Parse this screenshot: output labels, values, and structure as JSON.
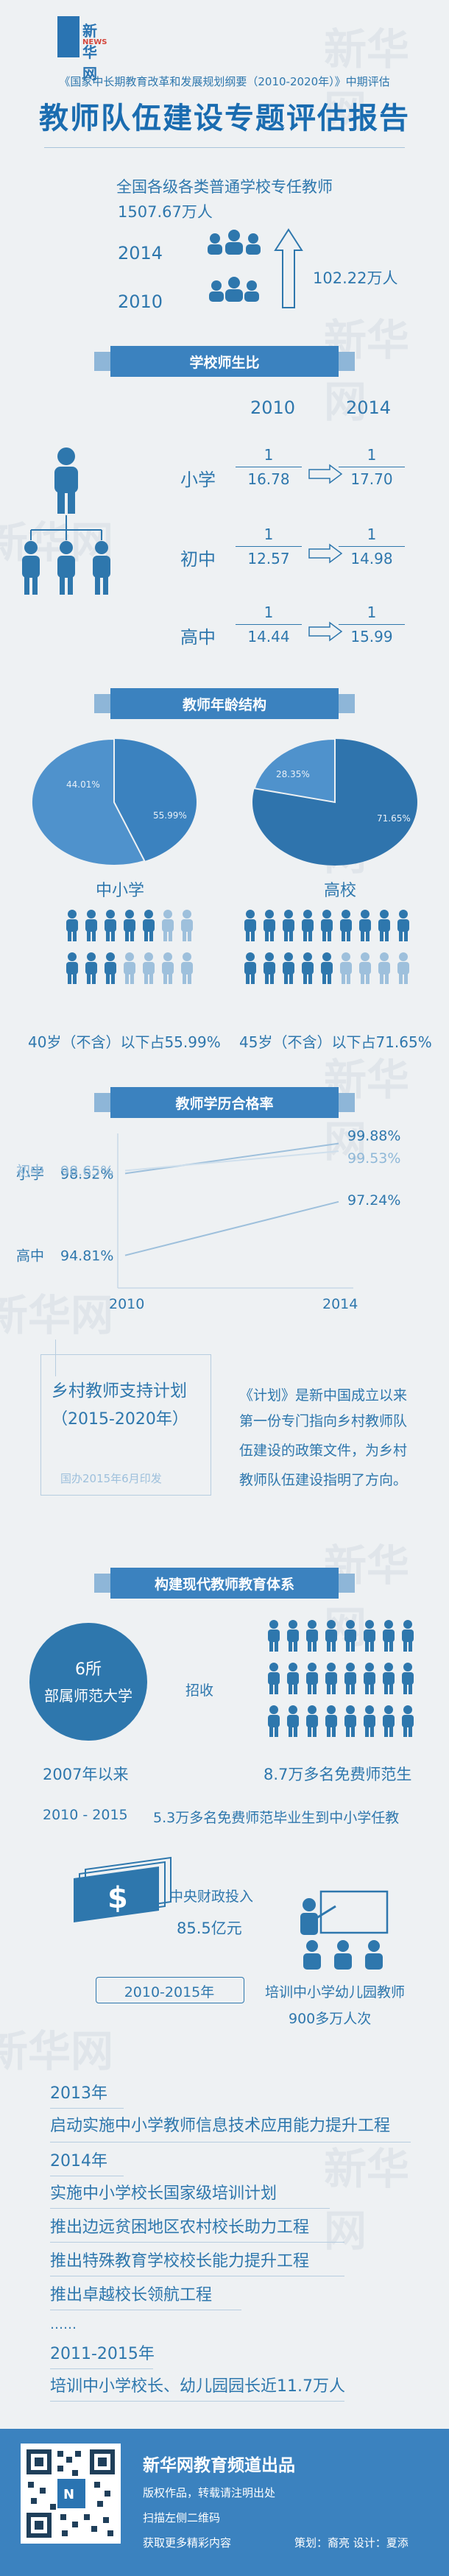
{
  "header": {
    "logo_text": "新华网",
    "logo_sub": "NEWS",
    "subtitle": "《国家中长期教育改革和发展规划纲要（2010-2020年）》中期评估",
    "title": "教师队伍建设专题评估报告"
  },
  "section_total": {
    "heading": "全国各级各类普通学校专任教师",
    "year_2014": "2014",
    "year_2010": "2010",
    "count_2014": "1507.67万人",
    "increase": "102.22万人"
  },
  "section_ratio": {
    "heading": "学校师生比",
    "col_2010": "2010",
    "col_2014": "2014",
    "rows": [
      {
        "label": "小学",
        "num_2010": "1",
        "den_2010": "16.78",
        "num_2014": "1",
        "den_2014": "17.70"
      },
      {
        "label": "初中",
        "num_2010": "1",
        "den_2010": "12.57",
        "num_2014": "1",
        "den_2014": "14.98"
      },
      {
        "label": "高中",
        "num_2010": "1",
        "den_2010": "14.44",
        "num_2014": "1",
        "den_2014": "15.99"
      }
    ]
  },
  "section_age": {
    "heading": "教师年龄结构",
    "pie_left": {
      "label": "中小学",
      "small_pct": "44.01%",
      "large_pct": "55.99%"
    },
    "pie_right": {
      "label": "高校",
      "small_pct": "28.35%",
      "large_pct": "71.65%"
    },
    "left_caption": "40岁（不含）以下占55.99%",
    "right_caption": "45岁（不含）以下占71.65%"
  },
  "chart_data": {
    "type": "line",
    "title": "教师学历合格率",
    "x": [
      "2010",
      "2014"
    ],
    "series": [
      {
        "name": "小学",
        "values": [
          98.52,
          99.88
        ]
      },
      {
        "name": "初中",
        "values": [
          98.65,
          99.53
        ]
      },
      {
        "name": "高中",
        "values": [
          94.81,
          97.24
        ]
      }
    ],
    "labels_2010": [
      "98.52%",
      "98.65%",
      "94.81%"
    ],
    "labels_2014": [
      "99.88%",
      "99.53%",
      "97.24%"
    ],
    "colors": [
      "#2e77ad",
      "#8fb8d8",
      "#2e77ad"
    ]
  },
  "section_rural": {
    "plan_title": "乡村教师支持计划",
    "plan_years": "（2015-2020年）",
    "plan_date": "国办2015年6月印发",
    "desc_lines": [
      "《计划》是新中国成立以来",
      "第一份专门指向乡村教师队",
      "伍建设的政策文件，为乡村",
      "教师队伍建设指明了方向。"
    ]
  },
  "section_system": {
    "heading": "构建现代教师教育体系",
    "circle_line1": "6所",
    "circle_line2": "部属师范大学",
    "recruit": "招收",
    "since_2007": "2007年以来",
    "free_students": "8.7万多名免费师范生",
    "range": "2010 - 2015",
    "graduates": "5.3万多名免费师范毕业生到中小学任教",
    "dollar": "$",
    "funding_label": "中央财政投入",
    "funding_amount": "85.5亿元",
    "period": "2010-2015年",
    "trained_label": "培训中小学幼儿园教师",
    "trained_amount": "900多万人次"
  },
  "timeline": [
    {
      "text": "2013年"
    },
    {
      "text": "启动实施中小学教师信息技术应用能力提升工程"
    },
    {
      "text": "2014年"
    },
    {
      "text": "实施中小学校长国家级培训计划"
    },
    {
      "text": "推出边远贫困地区农村校长助力工程"
    },
    {
      "text": "推出特殊教育学校校长能力提升工程"
    },
    {
      "text": "推出卓越校长领航工程"
    },
    {
      "text": "……"
    },
    {
      "text": "2011-2015年"
    },
    {
      "text": "培训中小学校长、幼儿园园长近11.7万人"
    }
  ],
  "footer": {
    "brand": "新华网教育频道出品",
    "copyright": "版权作品，转载请注明出处",
    "scan": "扫描左侧二维码",
    "more": "获取更多精彩内容",
    "credits": "策划：裔亮    设计：夏添"
  },
  "watermark": "新华网"
}
